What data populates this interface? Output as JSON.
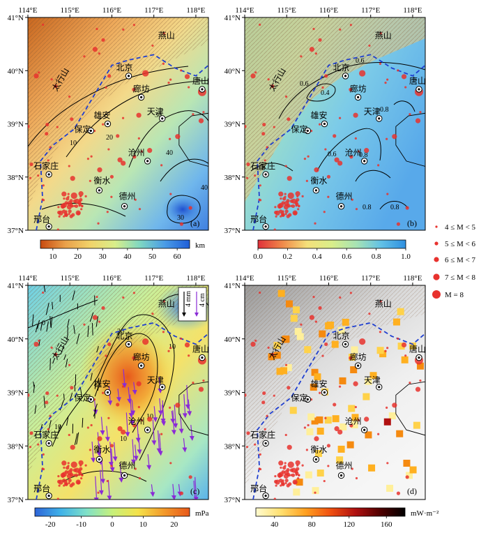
{
  "axes": {
    "lon_labels": [
      "114°E",
      "115°E",
      "116°E",
      "117°E",
      "118°E"
    ],
    "lat_labels": [
      "41°N",
      "40°N",
      "39°N",
      "38°N",
      "37°N"
    ]
  },
  "panels": [
    {
      "id": "a",
      "label": "(a)",
      "colorbar": {
        "ticks": [
          "10",
          "20",
          "30",
          "40",
          "50",
          "60"
        ],
        "unit": "km",
        "stops": [
          "#c84a10",
          "#e9a04a",
          "#f1d36a",
          "#d9ee8a",
          "#7fd7c2",
          "#4a9ce6",
          "#1f5ed8"
        ]
      },
      "contour_labels": [
        "10",
        "20",
        "30",
        "40",
        "40",
        "30"
      ]
    },
    {
      "id": "b",
      "label": "(b)",
      "colorbar": {
        "ticks": [
          "0.0",
          "0.2",
          "0.4",
          "0.6",
          "0.8",
          "1.0"
        ],
        "unit": "",
        "stops": [
          "#e0303a",
          "#f08a4a",
          "#f4e07a",
          "#d9ee8a",
          "#a7e3b4",
          "#62c1e6",
          "#2f8fe0"
        ]
      },
      "contour_labels": [
        "0.6",
        "0.4",
        "0.6",
        "0.8",
        "0.8",
        "0.6",
        "0.8",
        "0.8",
        "0.8"
      ]
    },
    {
      "id": "c",
      "label": "(c)",
      "colorbar": {
        "ticks": [
          "-20",
          "-10",
          "0",
          "10",
          "20"
        ],
        "unit": "mPa",
        "stops": [
          "#2d64d8",
          "#3fb2e8",
          "#7fe0c8",
          "#c6f07a",
          "#f4e24a",
          "#f39a2a",
          "#e8581a"
        ]
      },
      "contour_labels": [
        "0",
        "10",
        "10",
        "10",
        "20",
        "10",
        "0"
      ],
      "scale_labels": [
        "4 mm",
        "4 cm"
      ]
    },
    {
      "id": "d",
      "label": "(d)",
      "colorbar": {
        "ticks": [
          "40",
          "80",
          "120",
          "160"
        ],
        "unit": "mW·m⁻²",
        "stops": [
          "#fffbd0",
          "#ffe070",
          "#ffa020",
          "#f05010",
          "#b01010",
          "#500000",
          "#000000"
        ]
      }
    }
  ],
  "cities": [
    {
      "name": "北京"
    },
    {
      "name": "燕山"
    },
    {
      "name": "唐山"
    },
    {
      "name": "廊坊"
    },
    {
      "name": "雄安"
    },
    {
      "name": "天津"
    },
    {
      "name": "保定"
    },
    {
      "name": "沧州"
    },
    {
      "name": "石家庄"
    },
    {
      "name": "衡水"
    },
    {
      "name": "德州"
    },
    {
      "name": "邢台"
    },
    {
      "name": "太行山"
    }
  ],
  "legend": [
    {
      "label": "4 ≤ M < 5"
    },
    {
      "label": "5 ≤ M < 6"
    },
    {
      "label": "6 ≤ M < 7"
    },
    {
      "label": "7 ≤ M < 8"
    },
    {
      "label": "M = 8"
    }
  ],
  "colors": {
    "quake": "#e8322e",
    "boundary": "#1f3fd0",
    "arrow": "#8a2bd6",
    "contour": "#000000"
  }
}
